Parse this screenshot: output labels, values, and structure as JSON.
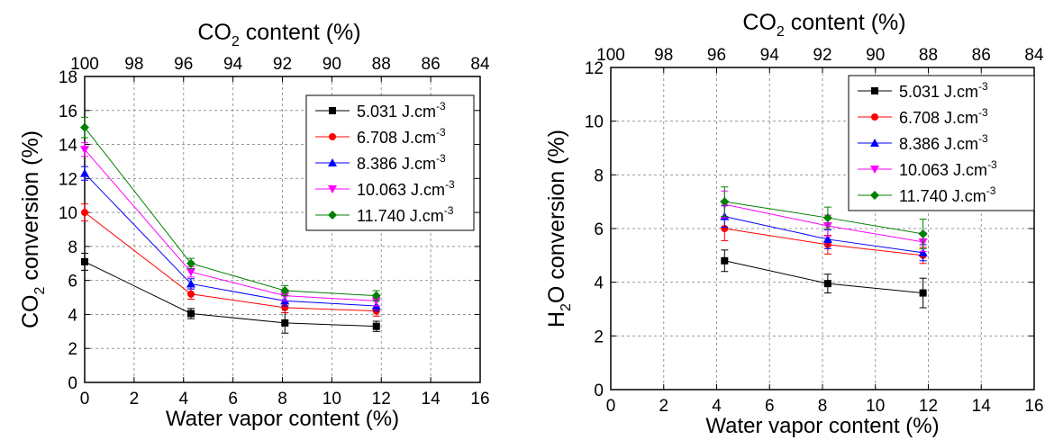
{
  "chart_data": [
    {
      "type": "line",
      "xlabel": "Water vapor content (%)",
      "ylabel_main": "CO",
      "ylabel_sub": "2",
      "ylabel_tail": " conversion (%)",
      "top_label_main": "CO",
      "top_label_sub": "2",
      "top_label_tail": " content (%)",
      "xlim": [
        0,
        16
      ],
      "ylim": [
        0,
        18
      ],
      "x_ticks": [
        "0",
        "2",
        "4",
        "6",
        "8",
        "10",
        "12",
        "14",
        "16"
      ],
      "y_ticks": [
        "0",
        "2",
        "4",
        "6",
        "8",
        "10",
        "12",
        "14",
        "16",
        "18"
      ],
      "top_ticks": [
        "100",
        "98",
        "96",
        "94",
        "92",
        "90",
        "88",
        "86",
        "84"
      ],
      "grid": true,
      "legend_position": "right",
      "x": [
        0,
        4.3,
        8.1,
        11.8
      ],
      "series": [
        {
          "name": "5.031 J.cm",
          "sup": "-3",
          "color": "#000000",
          "marker": "square",
          "values": [
            7.1,
            4.05,
            3.5,
            3.3
          ],
          "errors": [
            0.5,
            0.3,
            0.6,
            0.3
          ]
        },
        {
          "name": "6.708 J.cm",
          "sup": "-3",
          "color": "#ff0000",
          "marker": "circle",
          "values": [
            10.0,
            5.2,
            4.4,
            4.2
          ],
          "errors": [
            0.5,
            0.3,
            0.3,
            0.3
          ]
        },
        {
          "name": "8.386 J.cm",
          "sup": "-3",
          "color": "#0000ff",
          "marker": "triangle-up",
          "values": [
            12.3,
            5.8,
            4.8,
            4.5
          ],
          "errors": [
            0.4,
            0.3,
            0.3,
            0.3
          ]
        },
        {
          "name": "10.063 J.cm",
          "sup": "-3",
          "color": "#ff00ff",
          "marker": "triangle-down",
          "values": [
            13.7,
            6.5,
            5.1,
            4.8
          ],
          "errors": [
            0.4,
            0.3,
            0.3,
            0.3
          ]
        },
        {
          "name": "11.740 J.cm",
          "sup": "-3",
          "color": "#008000",
          "marker": "diamond",
          "values": [
            15.0,
            7.0,
            5.4,
            5.1
          ],
          "errors": [
            0.6,
            0.3,
            0.3,
            0.3
          ]
        }
      ]
    },
    {
      "type": "line",
      "xlabel": "Water vapor content (%)",
      "ylabel_main": "H",
      "ylabel_sub": "2",
      "ylabel_tail": "O conversion (%)",
      "top_label_main": "CO",
      "top_label_sub": "2",
      "top_label_tail": " content (%)",
      "xlim": [
        0,
        16
      ],
      "ylim": [
        0,
        12
      ],
      "x_ticks": [
        "0",
        "2",
        "4",
        "6",
        "8",
        "10",
        "12",
        "14",
        "16"
      ],
      "y_ticks": [
        "0",
        "2",
        "4",
        "6",
        "8",
        "10",
        "12"
      ],
      "top_ticks": [
        "100",
        "98",
        "96",
        "94",
        "92",
        "90",
        "88",
        "86",
        "84"
      ],
      "grid": true,
      "legend_position": "top-right",
      "x": [
        4.3,
        8.2,
        11.8
      ],
      "series": [
        {
          "name": "5.031 J.cm",
          "sup": "-3",
          "color": "#000000",
          "marker": "square",
          "values": [
            4.8,
            3.95,
            3.6
          ],
          "errors": [
            0.4,
            0.35,
            0.55
          ]
        },
        {
          "name": "6.708 J.cm",
          "sup": "-3",
          "color": "#ff0000",
          "marker": "circle",
          "values": [
            6.0,
            5.4,
            5.0
          ],
          "errors": [
            0.45,
            0.35,
            0.3
          ]
        },
        {
          "name": "8.386 J.cm",
          "sup": "-3",
          "color": "#0000ff",
          "marker": "triangle-up",
          "values": [
            6.45,
            5.6,
            5.1
          ],
          "errors": [
            0.4,
            0.35,
            0.3
          ]
        },
        {
          "name": "10.063 J.cm",
          "sup": "-3",
          "color": "#ff00ff",
          "marker": "triangle-down",
          "values": [
            6.9,
            6.1,
            5.5
          ],
          "errors": [
            0.5,
            0.4,
            0.35
          ]
        },
        {
          "name": "11.740 J.cm",
          "sup": "-3",
          "color": "#008000",
          "marker": "diamond",
          "values": [
            7.0,
            6.4,
            5.8
          ],
          "errors": [
            0.55,
            0.4,
            0.55
          ]
        }
      ]
    }
  ]
}
